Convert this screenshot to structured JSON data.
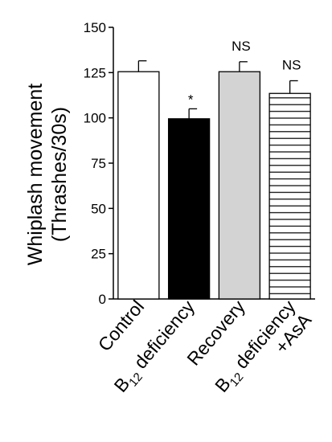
{
  "chart_data": {
    "type": "bar",
    "ylabel_line1": "Whiplash movement",
    "ylabel_line2": "(Thrashes/30s)",
    "ylim": [
      0,
      150
    ],
    "yticks": [
      "0",
      "25",
      "50",
      "75",
      "100",
      "125",
      "150"
    ],
    "grid": false,
    "categories": [
      {
        "pre": "Control",
        "sub": "",
        "post": "",
        "line2": ""
      },
      {
        "pre": "B",
        "sub": "12",
        "post": " deficiency",
        "line2": ""
      },
      {
        "pre": "Recovery",
        "sub": "",
        "post": "",
        "line2": ""
      },
      {
        "pre": "B",
        "sub": "12",
        "post": " deficiency",
        "line2": "+AsA"
      }
    ],
    "values": [
      125.5,
      99.5,
      125.5,
      113.5
    ],
    "errors": [
      6,
      5.5,
      5.5,
      7
    ],
    "significance": [
      "",
      "*",
      "NS",
      "NS"
    ],
    "fills": [
      "#ffffff",
      "#000000",
      "#d3d3d3",
      "hatch-horizontal"
    ]
  }
}
